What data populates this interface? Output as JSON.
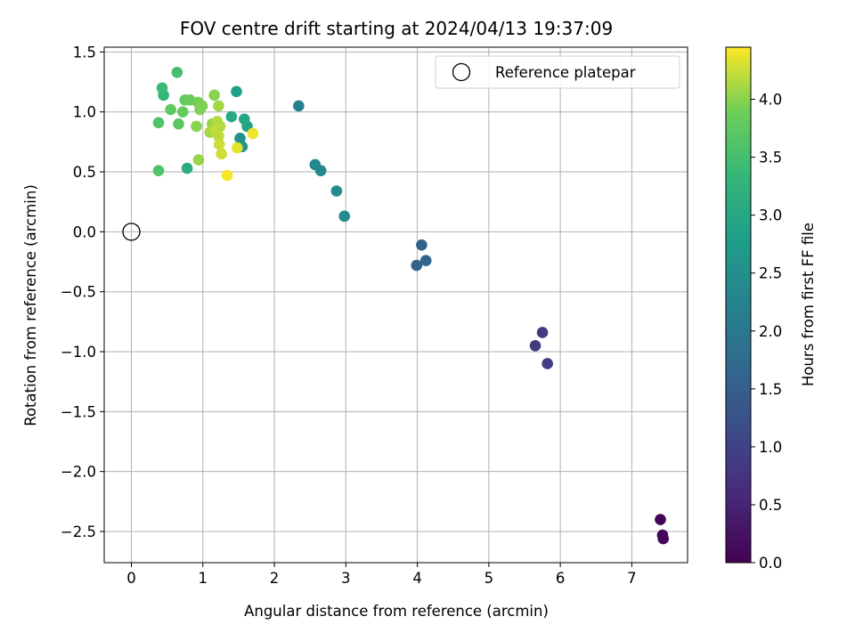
{
  "chart_data": {
    "type": "scatter",
    "title": "FOV centre drift starting at 2024/04/13 19:37:09",
    "xlabel": "Angular distance from reference (arcmin)",
    "ylabel": "Rotation from reference (arcmin)",
    "colorbar_label": "Hours from first FF file",
    "xlim": [
      -0.38,
      7.78
    ],
    "ylim": [
      -2.76,
      1.54
    ],
    "clim": [
      0.0,
      4.45
    ],
    "x_ticks": [
      0,
      1,
      2,
      3,
      4,
      5,
      6,
      7
    ],
    "x_tick_labels": [
      "0",
      "1",
      "2",
      "3",
      "4",
      "5",
      "6",
      "7"
    ],
    "y_ticks": [
      1.5,
      1.0,
      0.5,
      0.0,
      -0.5,
      -1.0,
      -1.5,
      -2.0,
      -2.5
    ],
    "y_tick_labels": [
      "1.5",
      "1.0",
      "0.5",
      "0.0",
      "−0.5",
      "−1.0",
      "−1.5",
      "−2.0",
      "−2.5"
    ],
    "colorbar_ticks": [
      0.0,
      0.5,
      1.0,
      1.5,
      2.0,
      2.5,
      3.0,
      3.5,
      4.0
    ],
    "colorbar_tick_labels": [
      "0.0",
      "0.5",
      "1.0",
      "1.5",
      "2.0",
      "2.5",
      "3.0",
      "3.5",
      "4.0"
    ],
    "colormap": "viridis",
    "grid": true,
    "legend": {
      "position": "top-right",
      "label": "Reference platepar"
    },
    "reference_point": {
      "x": 0.0,
      "y": 0.0
    },
    "points": [
      {
        "x": 7.4,
        "y": -2.4,
        "h": 0.03
      },
      {
        "x": 7.43,
        "y": -2.53,
        "h": 0.05
      },
      {
        "x": 7.44,
        "y": -2.56,
        "h": 0.08
      },
      {
        "x": 5.75,
        "y": -0.84,
        "h": 0.85
      },
      {
        "x": 5.65,
        "y": -0.95,
        "h": 0.88
      },
      {
        "x": 5.82,
        "y": -1.1,
        "h": 0.9
      },
      {
        "x": 4.06,
        "y": -0.11,
        "h": 1.55
      },
      {
        "x": 3.99,
        "y": -0.28,
        "h": 1.58
      },
      {
        "x": 4.12,
        "y": -0.24,
        "h": 1.6
      },
      {
        "x": 2.34,
        "y": 1.05,
        "h": 2.2
      },
      {
        "x": 2.57,
        "y": 0.56,
        "h": 2.3
      },
      {
        "x": 2.65,
        "y": 0.51,
        "h": 2.35
      },
      {
        "x": 2.87,
        "y": 0.34,
        "h": 2.4
      },
      {
        "x": 2.98,
        "y": 0.13,
        "h": 2.45
      },
      {
        "x": 1.47,
        "y": 1.17,
        "h": 2.8
      },
      {
        "x": 1.52,
        "y": 0.78,
        "h": 2.55
      },
      {
        "x": 1.55,
        "y": 0.71,
        "h": 2.6
      },
      {
        "x": 1.62,
        "y": 0.88,
        "h": 2.9
      },
      {
        "x": 1.58,
        "y": 0.94,
        "h": 2.95
      },
      {
        "x": 1.4,
        "y": 0.96,
        "h": 3.0
      },
      {
        "x": 0.78,
        "y": 0.53,
        "h": 3.1
      },
      {
        "x": 0.45,
        "y": 1.14,
        "h": 3.3
      },
      {
        "x": 0.43,
        "y": 1.2,
        "h": 3.4
      },
      {
        "x": 0.64,
        "y": 1.33,
        "h": 3.5
      },
      {
        "x": 0.38,
        "y": 0.91,
        "h": 3.6
      },
      {
        "x": 0.38,
        "y": 0.51,
        "h": 3.6
      },
      {
        "x": 0.66,
        "y": 0.9,
        "h": 3.7
      },
      {
        "x": 0.55,
        "y": 1.02,
        "h": 3.75
      },
      {
        "x": 0.72,
        "y": 1.0,
        "h": 3.8
      },
      {
        "x": 0.75,
        "y": 1.1,
        "h": 3.8
      },
      {
        "x": 0.82,
        "y": 1.1,
        "h": 3.85
      },
      {
        "x": 0.93,
        "y": 1.08,
        "h": 3.9
      },
      {
        "x": 0.96,
        "y": 1.02,
        "h": 3.95
      },
      {
        "x": 0.99,
        "y": 1.05,
        "h": 3.95
      },
      {
        "x": 0.91,
        "y": 0.88,
        "h": 4.0
      },
      {
        "x": 1.16,
        "y": 1.14,
        "h": 4.0
      },
      {
        "x": 0.94,
        "y": 0.6,
        "h": 4.05
      },
      {
        "x": 1.13,
        "y": 0.9,
        "h": 4.05
      },
      {
        "x": 1.22,
        "y": 1.05,
        "h": 4.1
      },
      {
        "x": 1.1,
        "y": 0.83,
        "h": 4.1
      },
      {
        "x": 1.2,
        "y": 0.92,
        "h": 4.15
      },
      {
        "x": 1.24,
        "y": 0.88,
        "h": 4.15
      },
      {
        "x": 1.17,
        "y": 0.85,
        "h": 4.2
      },
      {
        "x": 1.22,
        "y": 0.8,
        "h": 4.2
      },
      {
        "x": 1.23,
        "y": 0.73,
        "h": 4.25
      },
      {
        "x": 1.26,
        "y": 0.65,
        "h": 4.25
      },
      {
        "x": 1.48,
        "y": 0.7,
        "h": 4.35
      },
      {
        "x": 1.7,
        "y": 0.82,
        "h": 4.4
      },
      {
        "x": 1.34,
        "y": 0.47,
        "h": 4.42
      }
    ]
  }
}
